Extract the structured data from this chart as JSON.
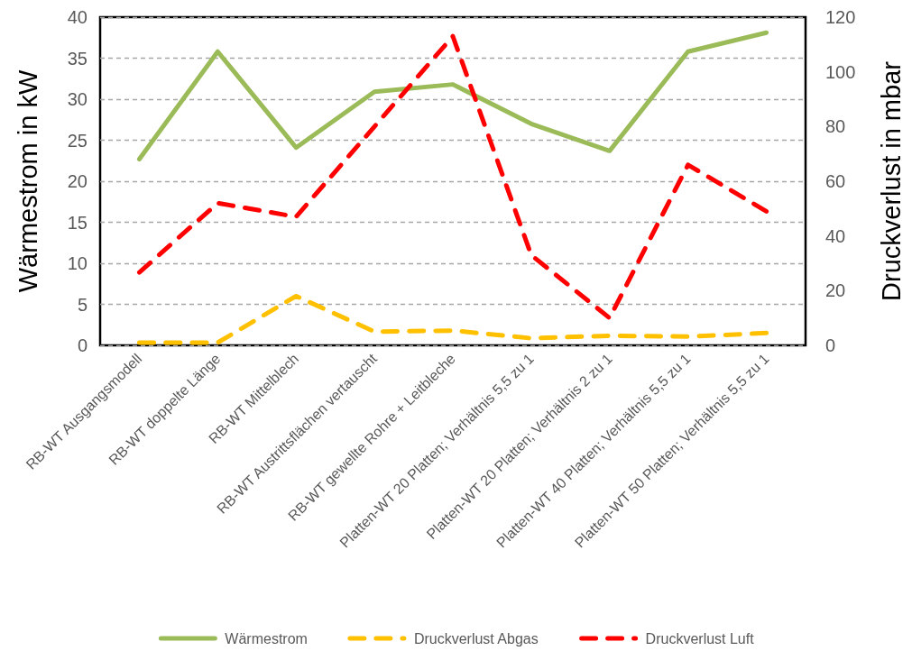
{
  "chart_data": {
    "type": "line",
    "categories": [
      "RB-WT Ausgangsmodell",
      "RB-WT doppelte Länge",
      "RB-WT Mittelblech",
      "RB-WT Austrittsflächen vertauscht",
      "RB-WT gewellte Rohre + Leitbleche",
      "Platten-WT 20 Platten; Verhältnis 5,5 zu 1",
      "Platten-WT 20 Platten; Verhältnis 2 zu 1",
      "Platten-WT 40 Platten; Verhältnis 5,5 zu 1",
      "Platten-WT 50 Platten; Verhältnis 5,5 zu 1"
    ],
    "ylabel": "Wärmestrom in kW",
    "y2label": "Druckverlust in mbar",
    "ylim": [
      0,
      40
    ],
    "yticks": [
      0,
      5,
      10,
      15,
      20,
      25,
      30,
      35,
      40
    ],
    "y2lim": [
      0,
      120
    ],
    "y2ticks": [
      0,
      20,
      40,
      60,
      80,
      100,
      120
    ],
    "grid": "y",
    "legend": "bottom",
    "marker": "none",
    "series": [
      {
        "name": "Wärmestrom",
        "color": "#9bbb59",
        "line_style": "solid",
        "values": [
          22.7,
          35.8,
          24.1,
          30.9,
          31.8,
          27.0,
          23.7,
          35.8,
          38.1
        ]
      },
      {
        "name": "Druckverlust Abgas",
        "color": "#ffc000",
        "line_style": "dashed",
        "axis": "y2",
        "values": [
          1,
          1,
          18,
          5,
          5.4,
          2.6,
          3.5,
          3.2,
          4.5
        ]
      },
      {
        "name": "Druckverlust Luft",
        "color": "#ff0000",
        "line_style": "dashed",
        "axis": "y2",
        "values": [
          26.7,
          52,
          47,
          80,
          113,
          33,
          10,
          66,
          49
        ]
      }
    ]
  }
}
